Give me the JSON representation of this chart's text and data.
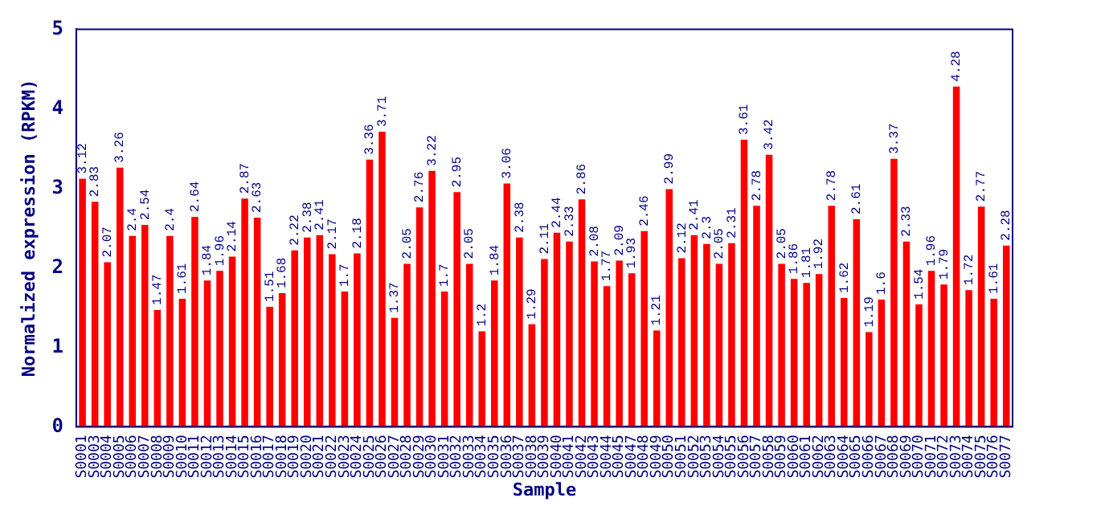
{
  "chart_data": {
    "type": "bar",
    "xlabel": "Sample",
    "ylabel": "Normalized expression (RPKM)",
    "categories": [
      "S0001",
      "S0003",
      "S0004",
      "S0005",
      "S0006",
      "S0007",
      "S0008",
      "S0009",
      "S0010",
      "S0011",
      "S0012",
      "S0013",
      "S0014",
      "S0015",
      "S0016",
      "S0017",
      "S0018",
      "S0019",
      "S0020",
      "S0021",
      "S0022",
      "S0023",
      "S0024",
      "S0025",
      "S0026",
      "S0027",
      "S0028",
      "S0029",
      "S0030",
      "S0031",
      "S0032",
      "S0033",
      "S0034",
      "S0035",
      "S0036",
      "S0037",
      "S0038",
      "S0039",
      "S0040",
      "S0041",
      "S0042",
      "S0043",
      "S0044",
      "S0045",
      "S0047",
      "S0048",
      "S0049",
      "S0050",
      "S0051",
      "S0052",
      "S0053",
      "S0054",
      "S0055",
      "S0056",
      "S0057",
      "S0058",
      "S0059",
      "S0060",
      "S0061",
      "S0062",
      "S0063",
      "S0064",
      "S0065",
      "S0066",
      "S0067",
      "S0068",
      "S0069",
      "S0070",
      "S0071",
      "S0072",
      "S0073",
      "S0074",
      "S0075",
      "S0076",
      "S0077"
    ],
    "values": [
      3.12,
      2.83,
      2.07,
      3.26,
      2.4,
      2.54,
      1.47,
      2.4,
      1.61,
      2.64,
      1.84,
      1.96,
      2.14,
      2.87,
      2.63,
      1.51,
      1.68,
      2.22,
      2.38,
      2.41,
      2.17,
      1.7,
      2.18,
      3.36,
      3.71,
      1.37,
      2.05,
      2.76,
      3.22,
      1.7,
      2.95,
      2.05,
      1.2,
      1.84,
      3.06,
      2.38,
      1.29,
      2.11,
      2.44,
      2.33,
      2.86,
      2.08,
      1.77,
      2.09,
      1.93,
      2.46,
      1.21,
      2.99,
      2.12,
      2.41,
      2.3,
      2.05,
      2.31,
      3.61,
      2.78,
      3.42,
      2.05,
      1.86,
      1.81,
      1.92,
      2.78,
      1.62,
      2.61,
      1.19,
      1.6,
      3.37,
      2.33,
      1.54,
      1.96,
      1.79,
      4.28,
      1.72,
      2.77,
      1.61,
      2.28
    ],
    "color": "#ff0000",
    "ylim": [
      0,
      5
    ],
    "yticks": [
      0,
      1,
      2,
      3,
      4,
      5
    ],
    "grid": false,
    "legend": false,
    "data_labels": true
  }
}
